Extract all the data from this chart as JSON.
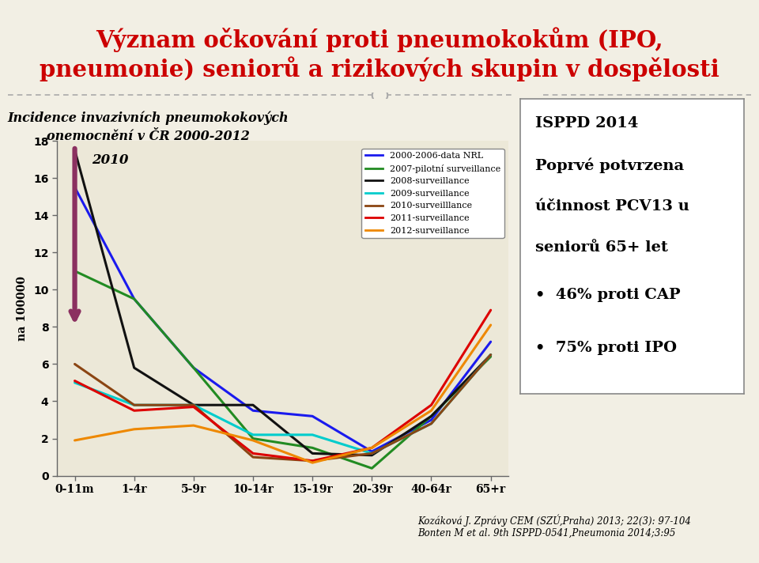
{
  "title_line1": "Význam očkování proti pneumokokům (IPO,",
  "title_line2": "pneumonie) seniorů a rizikových skupin v dospělosti",
  "title_color": "#cc0000",
  "subtitle_line1": "Incidence invazivních pneumokokových",
  "subtitle_line2": "onemocnění v ČR 2000-2012",
  "xlabel_categories": [
    "0-11m",
    "1-4r",
    "5-9r",
    "10-14r",
    "15-19r",
    "20-39r",
    "40-64r",
    "65+r"
  ],
  "ylabel": "na 100000",
  "ylim": [
    0,
    18
  ],
  "yticks": [
    0,
    2,
    4,
    6,
    8,
    10,
    12,
    14,
    16,
    18
  ],
  "bg_color": "#ece8d8",
  "outer_bg": "#f2efe4",
  "series": [
    {
      "label": "2000-2006-data NRL",
      "color": "#1a1aee",
      "values": [
        15.5,
        9.5,
        5.8,
        3.5,
        3.2,
        1.3,
        3.0,
        7.2
      ]
    },
    {
      "label": "2007-pilotní surveillance",
      "color": "#228B22",
      "values": [
        11.0,
        9.5,
        5.8,
        2.0,
        1.5,
        0.4,
        3.2,
        6.4
      ]
    },
    {
      "label": "2008-surveillance",
      "color": "#111111",
      "values": [
        17.5,
        5.8,
        3.8,
        3.8,
        1.2,
        1.1,
        3.2,
        6.5
      ]
    },
    {
      "label": "2009-surveillance",
      "color": "#00cccc",
      "values": [
        5.0,
        3.8,
        3.8,
        2.2,
        2.2,
        1.2,
        2.8,
        6.5
      ]
    },
    {
      "label": "2010-surveilllance",
      "color": "#8B4513",
      "values": [
        6.0,
        3.8,
        3.8,
        1.0,
        0.8,
        1.2,
        2.8,
        6.5
      ]
    },
    {
      "label": "2011-surveillance",
      "color": "#dd0000",
      "values": [
        5.1,
        3.5,
        3.7,
        1.2,
        0.8,
        1.5,
        3.8,
        8.9
      ]
    },
    {
      "label": "2012-surveillance",
      "color": "#ee8800",
      "values": [
        1.9,
        2.5,
        2.7,
        1.9,
        0.7,
        1.5,
        3.5,
        8.1
      ]
    }
  ],
  "right_box_text_line1": "ISPPD 2014",
  "right_box_text_line2": "Poprvé potvrzena",
  "right_box_text_line3": "účinnost PCV13 u",
  "right_box_text_line4": "seniorů 65+ let",
  "right_box_bullet1": "•  46% proti CAP",
  "right_box_bullet2": "•  75% proti IPO",
  "footer_text": "Kozáková J. Zprávy CEM (SZÚ,Praha) 2013; 22(3): 97-104\nBonten M et al. 9th ISPPD-0541,Pneumonia 2014;3:95",
  "divider_color": "#aaaaaa",
  "arrow_color": "#8B3060"
}
